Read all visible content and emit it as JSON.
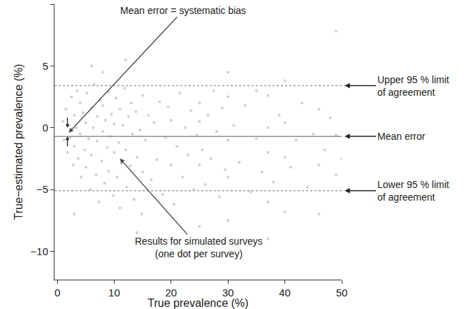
{
  "chart_data": {
    "type": "scatter",
    "xlabel": "True prevalence (%)",
    "ylabel": "True−estimated prevalence (%)",
    "xlim": [
      -0.5,
      50
    ],
    "ylim": [
      -12.3,
      10
    ],
    "xticks": [
      0,
      10,
      20,
      30,
      40,
      50
    ],
    "yticks": [
      {
        "value": -10,
        "label": "−10"
      },
      {
        "value": -5,
        "label": "−5"
      },
      0,
      5,
      10
    ],
    "grid": false,
    "series": [
      {
        "color": "#a8a8a8",
        "marker": "circle",
        "x": [
          1,
          1.2,
          1.5,
          1.8,
          2,
          2.2,
          2.5,
          2.8,
          3,
          3,
          3.3,
          3.5,
          3.7,
          4,
          4,
          4.2,
          4.5,
          4.8,
          5,
          5,
          5.2,
          5.5,
          5.8,
          6,
          6,
          6.3,
          6.5,
          6.8,
          7,
          7,
          7.3,
          7.5,
          7.8,
          8,
          8,
          8.3,
          8.5,
          8.8,
          9,
          9,
          9.3,
          9.5,
          9.8,
          10,
          10,
          10.3,
          10.5,
          10.8,
          11,
          11,
          11.3,
          11.5,
          11.8,
          12,
          12.2,
          12.5,
          12.8,
          13,
          13.2,
          13.5,
          13.8,
          14,
          14.5,
          14.8,
          15,
          15,
          6,
          8,
          12,
          3,
          14,
          15.5,
          16,
          16.5,
          17,
          17.5,
          18,
          18.5,
          19,
          19.5,
          20,
          20,
          20.5,
          21,
          21.5,
          22,
          22.5,
          23,
          23.5,
          24,
          24.5,
          25,
          25,
          25,
          25,
          25.5,
          26,
          26.5,
          27,
          27.5,
          28,
          28.5,
          29,
          29.5,
          30,
          30,
          30,
          30,
          30,
          31,
          32,
          33,
          34,
          35,
          35,
          36,
          37,
          37,
          37,
          37,
          37,
          38,
          39,
          40,
          40,
          40,
          40,
          41,
          42,
          43,
          44,
          45,
          46,
          46,
          46,
          47,
          48,
          49,
          49,
          49,
          50
        ],
        "values": [
          0.5,
          -1,
          1.5,
          -2,
          0.2,
          -0.8,
          2.5,
          -3,
          1,
          -1.5,
          0,
          3,
          -2.5,
          -0.5,
          2,
          -4,
          1.2,
          -1.8,
          0.4,
          -3.2,
          2.8,
          -0.9,
          -5,
          1.6,
          -2.2,
          0,
          3.5,
          -3.8,
          -1.1,
          0.9,
          -6,
          2.2,
          -2.7,
          -0.3,
          1.8,
          -4.5,
          0.6,
          -1.6,
          2.9,
          -3.5,
          -0.7,
          1.1,
          -5.5,
          -2,
          0.3,
          2.4,
          -4,
          -1.2,
          1.5,
          -6.5,
          -2.9,
          0.2,
          3.2,
          -1.8,
          -4.8,
          0.9,
          -3.1,
          2,
          -0.5,
          -5.8,
          1.3,
          -2.4,
          -0.2,
          -7,
          2.6,
          -3.6,
          5,
          4.5,
          5.5,
          -7,
          -8.5,
          -1,
          1,
          -4.2,
          0.4,
          -2.6,
          2.1,
          -5.4,
          -0.8,
          1.7,
          -3,
          0.6,
          -6.2,
          -1.5,
          2.8,
          -4,
          0,
          -2.2,
          1.4,
          -5,
          -0.6,
          -8,
          2,
          -3,
          0.5,
          -1.8,
          -4.6,
          1,
          -2.5,
          3,
          -0.3,
          -5.6,
          1.6,
          -3.4,
          -7.5,
          -1,
          2.5,
          -4,
          4.5,
          0.2,
          -2.8,
          1.8,
          -5.2,
          -0.9,
          3,
          -3.6,
          -9,
          0,
          -2,
          -6,
          2.6,
          -4.4,
          1,
          -2.4,
          -6.8,
          3.8,
          0.4,
          -3.2,
          -1,
          2,
          -4.8,
          -0.5,
          -3,
          1.5,
          -7,
          -1.8,
          0.8,
          7.8,
          -3.8,
          -0.6,
          -2.5
        ]
      }
    ],
    "reference_lines": [
      {
        "label": [
          "Upper 95 % limit",
          "of agreement"
        ],
        "value": 3.4,
        "line_style": "dotted"
      },
      {
        "label": [
          "Mean error"
        ],
        "value": -0.7,
        "line_style": "solid"
      },
      {
        "label": [
          "Lower 95 % limit",
          "of agreement"
        ],
        "value": -5.1,
        "line_style": "dotted"
      }
    ],
    "annotations": [
      {
        "text": [
          "Mean error = systematic bias"
        ],
        "x": 2,
        "y": -0.4
      },
      {
        "text": [
          "Results for simulated surveys",
          "(one dot per survey)"
        ],
        "x": 11,
        "y": -2.5
      }
    ]
  }
}
